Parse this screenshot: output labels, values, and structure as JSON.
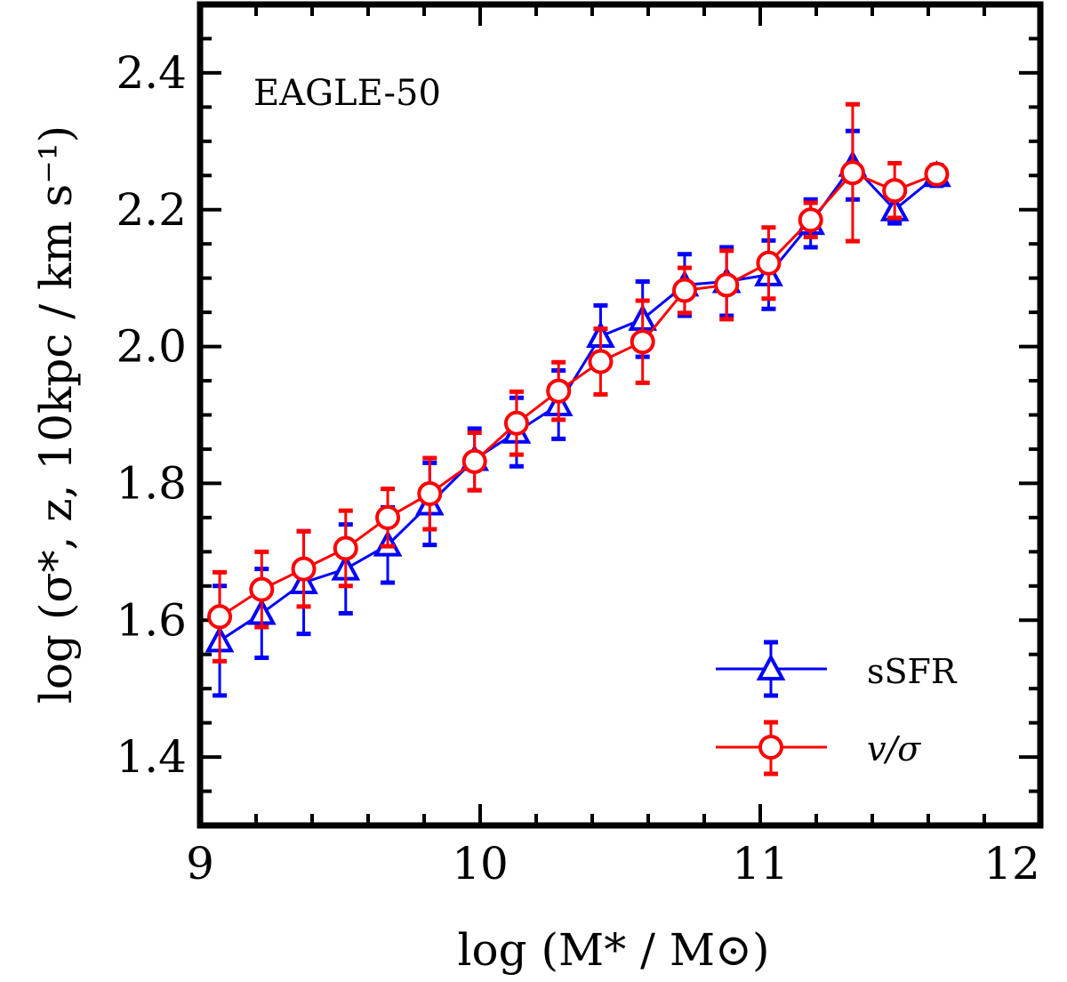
{
  "chart_data": {
    "type": "line",
    "title": "",
    "annotation": "EAGLE-50",
    "xlabel": "log (M* / M⊙)",
    "ylabel": "log (σ*, z, 10kpc / km s⁻¹)",
    "xlim": [
      9,
      12
    ],
    "ylim": [
      1.3,
      2.5
    ],
    "xticks": [
      "9",
      "10",
      "11",
      "12"
    ],
    "yticks": [
      "1.4",
      "1.6",
      "1.8",
      "2.0",
      "2.2",
      "2.4"
    ],
    "xtick_values": [
      9,
      10,
      11,
      12
    ],
    "ytick_values": [
      1.4,
      1.6,
      1.8,
      2.0,
      2.2,
      2.4
    ],
    "legend_position": "bottom-right",
    "series": [
      {
        "name": "sSFR",
        "color": "#0000ff",
        "marker": "triangle",
        "x": [
          9.07,
          9.22,
          9.37,
          9.52,
          9.67,
          9.82,
          9.98,
          10.13,
          10.28,
          10.43,
          10.58,
          10.73,
          10.88,
          11.03,
          11.18,
          11.33,
          11.48,
          11.63
        ],
        "y": [
          1.57,
          1.61,
          1.655,
          1.675,
          1.71,
          1.77,
          1.835,
          1.875,
          1.915,
          2.015,
          2.04,
          2.09,
          2.095,
          2.105,
          2.18,
          2.265,
          2.2,
          2.25
        ],
        "err": [
          0.08,
          0.065,
          0.075,
          0.065,
          0.055,
          0.06,
          0.045,
          0.05,
          0.05,
          0.045,
          0.055,
          0.045,
          0.05,
          0.05,
          0.035,
          0.05,
          0.02,
          0.015
        ]
      },
      {
        "name": "v/σ",
        "color": "#ff0000",
        "marker": "circle",
        "x": [
          9.07,
          9.22,
          9.37,
          9.52,
          9.67,
          9.82,
          9.98,
          10.13,
          10.28,
          10.43,
          10.58,
          10.73,
          10.88,
          11.03,
          11.18,
          11.33,
          11.48,
          11.63
        ],
        "y": [
          1.605,
          1.645,
          1.675,
          1.705,
          1.75,
          1.785,
          1.832,
          1.888,
          1.935,
          1.978,
          2.007,
          2.082,
          2.09,
          2.122,
          2.185,
          2.254,
          2.228,
          2.252
        ],
        "err": [
          0.065,
          0.055,
          0.055,
          0.055,
          0.042,
          0.052,
          0.042,
          0.046,
          0.042,
          0.048,
          0.06,
          0.033,
          0.05,
          0.052,
          0.025,
          0.1,
          0.04,
          0.01
        ]
      }
    ]
  }
}
